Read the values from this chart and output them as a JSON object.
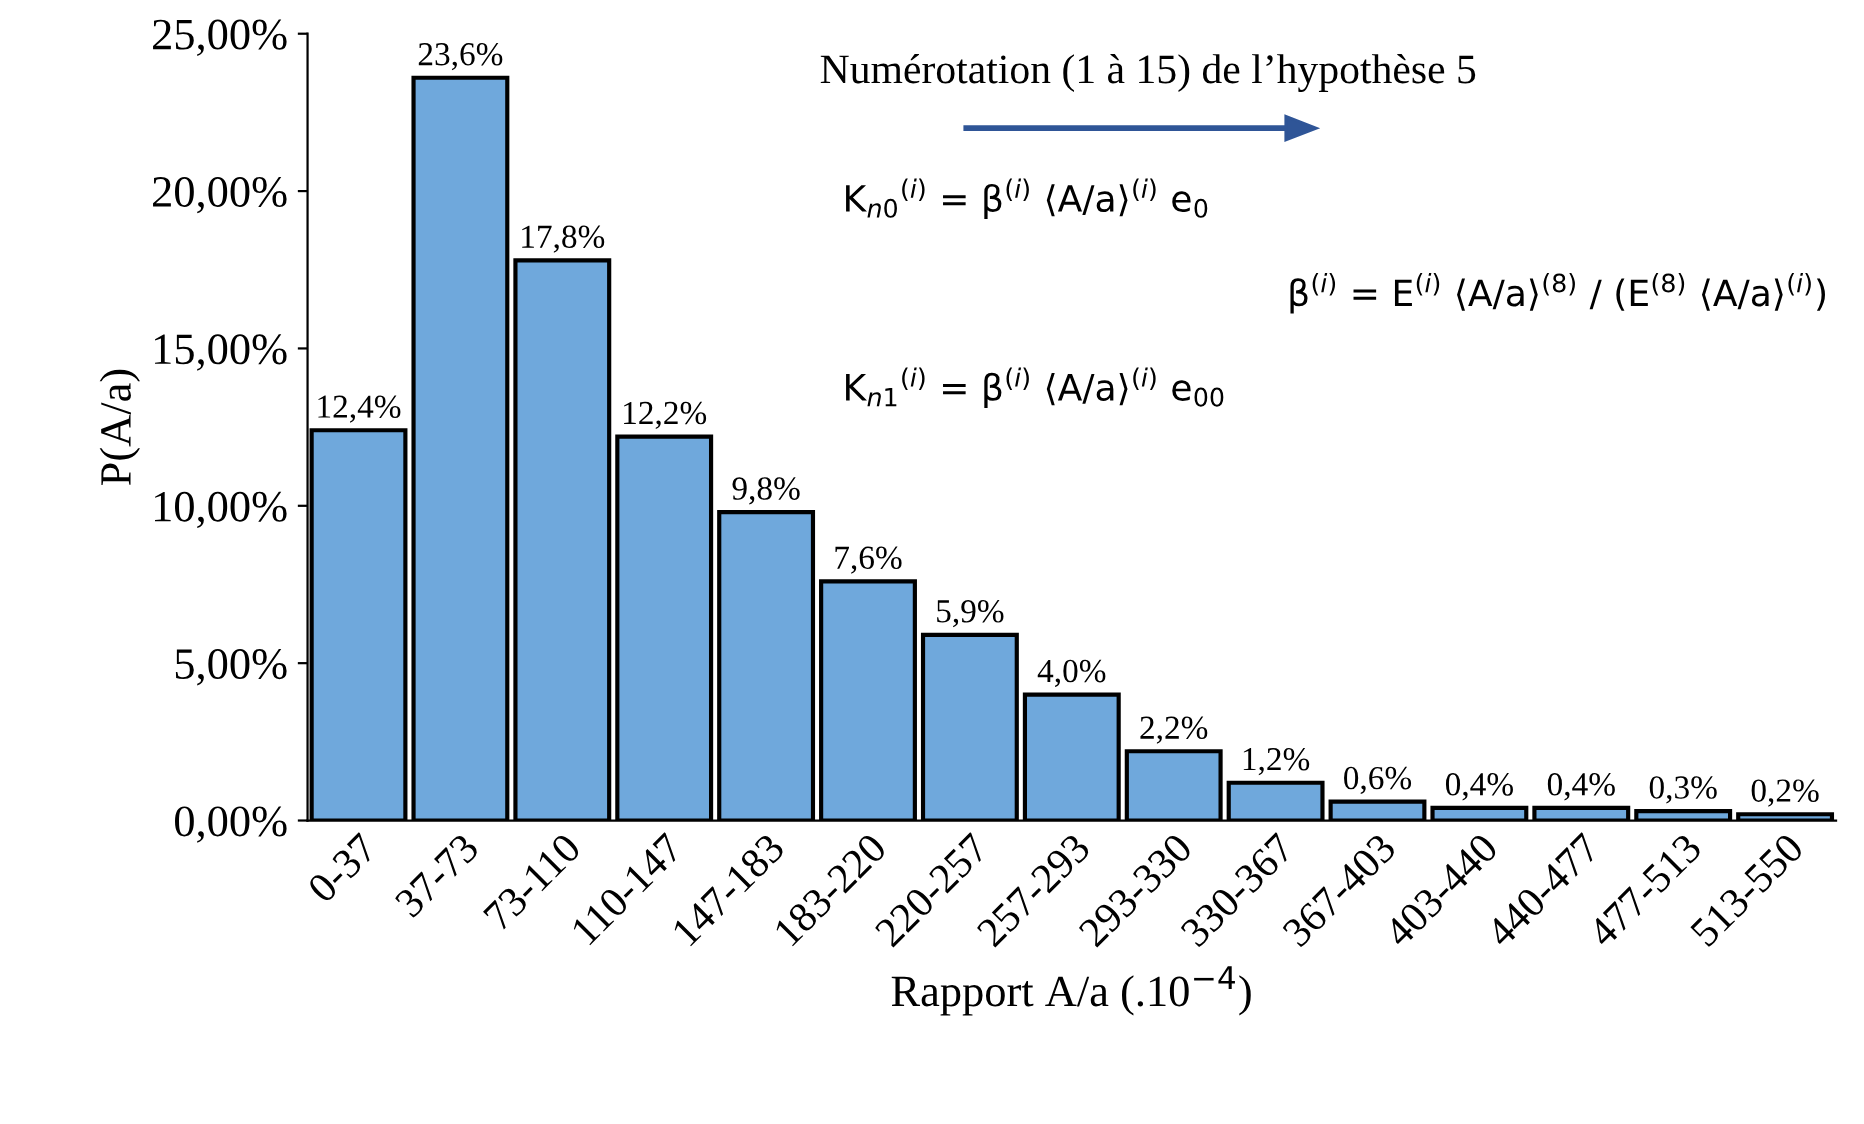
{
  "chart_data": {
    "type": "bar",
    "xlabel": "Rapport A/a (.10$^{−4}$)",
    "ylabel": "P(A/a)",
    "categories": [
      "0-37",
      "37-73",
      "73-110",
      "110-147",
      "147-183",
      "183-220",
      "220-257",
      "257-293",
      "293-330",
      "330-367",
      "367-403",
      "403-440",
      "440-477",
      "477-513",
      "513-550"
    ],
    "values": [
      12.4,
      23.6,
      17.8,
      12.2,
      9.8,
      7.6,
      5.9,
      4.0,
      2.2,
      1.2,
      0.6,
      0.4,
      0.4,
      0.3,
      0.2
    ],
    "value_labels": [
      "12,4%",
      "23,6%",
      "17,8%",
      "12,2%",
      "9,8%",
      "7,6%",
      "5,9%",
      "4,0%",
      "2,2%",
      "1,2%",
      "0,6%",
      "0,4%",
      "0,4%",
      "0,3%",
      "0,2%"
    ],
    "color": "#6fa8dc",
    "ylim": [
      0,
      25
    ],
    "yticks": [
      {
        "value": 0,
        "label": "0,00%"
      },
      {
        "value": 5,
        "label": "5,00%"
      },
      {
        "value": 10,
        "label": "10,00%"
      },
      {
        "value": 15,
        "label": "15,00%"
      },
      {
        "value": 20,
        "label": "20,00%"
      },
      {
        "value": 25,
        "label": "25,00%"
      }
    ],
    "grid": false,
    "legend": false,
    "annotations": [
      "Numérotation (1 à 15) de l’hypothèse 5",
      "K$_{n0}$$^{(i)}$ = β$^{(i)}$ ⟨A/a⟩$^{(i)}$ e$_{0}$",
      "K$_{n1}$$^{(i)}$ = β$^{(i)}$ ⟨A/a⟩$^{(i)}$ e$_{00}$",
      "β$^{(i)}$ = E$^{(i)}$ ⟨A/a⟩$^{(8)}$ / (E$^{(8)}$ ⟨A/a⟩$^{(i)}$)"
    ]
  }
}
